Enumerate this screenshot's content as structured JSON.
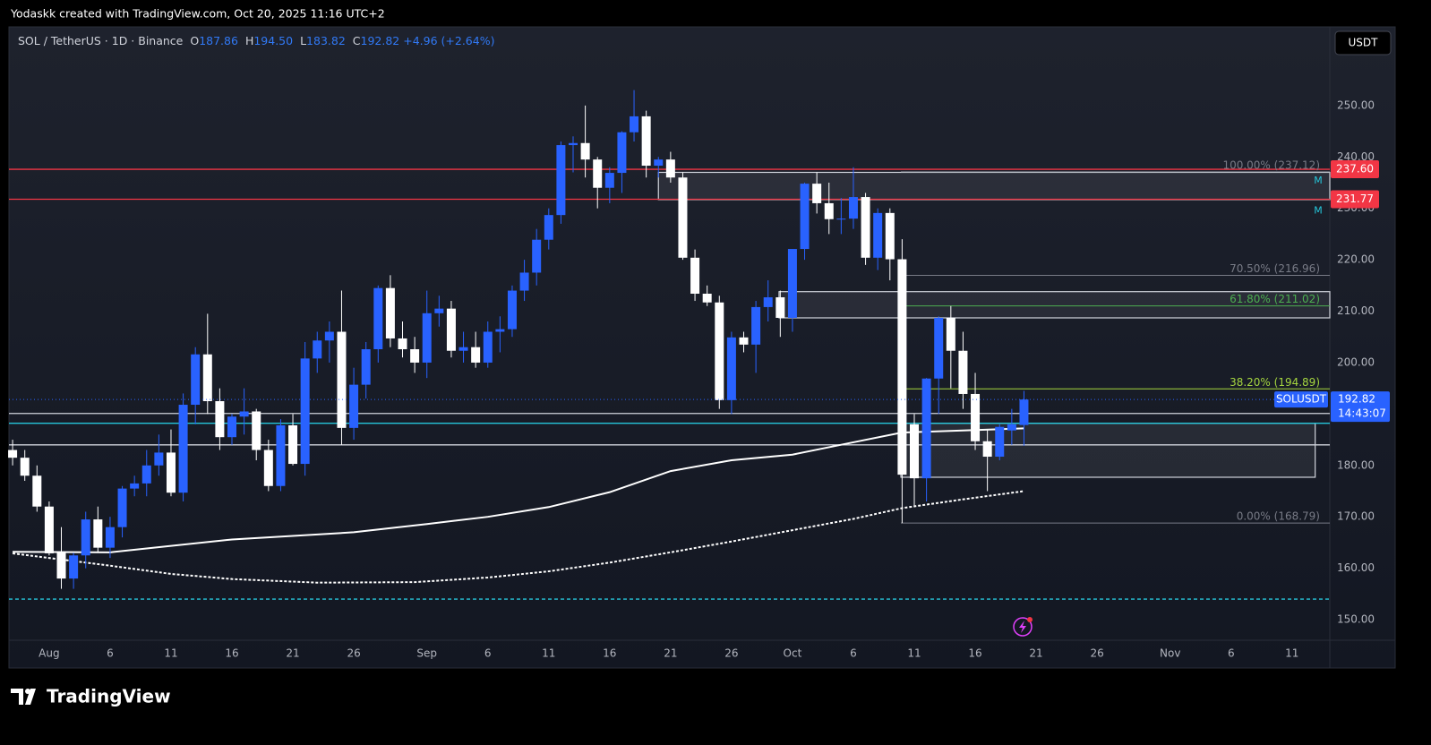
{
  "header": {
    "attribution": "Yodaskk created with TradingView.com, Oct 20, 2025 11:16 UTC+2"
  },
  "legend": {
    "symbol": "SOL / TetherUS · 1D · Binance",
    "open_key": "O",
    "open": "187.86",
    "high_key": "H",
    "high": "194.50",
    "low_key": "L",
    "low": "183.82",
    "close_key": "C",
    "close": "192.82",
    "change": "+4.96 (+2.64%)"
  },
  "currency_button": "USDT",
  "brand": "TradingView",
  "chart_data": {
    "type": "candlestick",
    "up_color": "#2962ff",
    "down_color": "#ffffff",
    "x": [
      -3,
      -2,
      -1,
      0,
      1,
      2,
      3,
      4,
      5,
      6,
      7,
      8,
      9,
      10,
      11,
      12,
      13,
      14,
      15,
      16,
      17,
      18,
      19,
      20,
      21,
      22,
      23,
      24,
      25,
      26,
      27,
      28,
      29,
      30,
      31,
      32,
      33,
      34,
      35,
      36,
      37,
      38,
      39,
      40,
      41,
      42,
      43,
      44,
      45,
      46,
      47,
      48,
      49,
      50,
      51,
      52,
      53,
      54,
      55,
      56,
      57,
      58,
      59,
      60,
      61,
      62,
      63,
      64,
      65,
      66,
      67,
      68,
      69,
      70,
      71,
      72,
      73,
      74,
      75,
      76,
      77,
      78,
      79,
      80
    ],
    "open": [
      183,
      181.5,
      178,
      172,
      163,
      158,
      162.5,
      169.5,
      164,
      168,
      175.5,
      176.5,
      180,
      182.5,
      174.7,
      191.8,
      201.6,
      192.5,
      185.5,
      189.5,
      190.5,
      183,
      176,
      187.8,
      180.3,
      200.8,
      204.3,
      206,
      187.3,
      195.7,
      202.6,
      214.5,
      204.7,
      202.6,
      200,
      209.6,
      210.5,
      202.3,
      203,
      200,
      206,
      206.5,
      214,
      217.5,
      223.9,
      228.7,
      242.3,
      242.7,
      239.5,
      234,
      236.9,
      244.8,
      247.9,
      238.3,
      239.5,
      236,
      220.4,
      213.4,
      211.7,
      192.7,
      204.9,
      203.5,
      210.8,
      212.7,
      208.7,
      222.1,
      234.8,
      231,
      227.9,
      228,
      232.2,
      220.4,
      229.1,
      220.1,
      188,
      177.5,
      196.9,
      208.7,
      202.3,
      193.9,
      184.7,
      181.7,
      186.8,
      187.86
    ],
    "high": [
      185,
      183,
      180,
      173,
      168,
      163,
      171,
      172,
      170,
      176,
      178,
      183,
      186,
      187,
      194,
      203,
      209.5,
      195,
      190,
      195,
      191,
      185,
      189,
      190,
      204,
      206,
      208,
      214,
      199,
      204,
      215,
      217,
      208,
      205,
      214,
      213,
      212,
      206,
      206,
      208,
      209,
      215,
      220,
      226,
      230,
      243,
      244,
      250,
      240,
      238,
      245,
      253,
      249,
      240,
      241,
      237,
      222,
      215,
      213,
      206,
      206,
      212,
      216,
      214,
      222,
      235,
      237,
      235,
      232,
      238,
      233,
      230,
      230,
      224,
      190,
      197,
      209,
      211,
      206,
      198,
      187,
      188,
      191,
      194.5
    ],
    "low": [
      180,
      177,
      171,
      162.5,
      156,
      156,
      160,
      163,
      162,
      166,
      174,
      174,
      178,
      174,
      173,
      188,
      190,
      183,
      184,
      186,
      181,
      175,
      175,
      180,
      178,
      198,
      200,
      184,
      185,
      193,
      200,
      203,
      201,
      198,
      197,
      207,
      201,
      200,
      199,
      199,
      202,
      205,
      212,
      215,
      222,
      227,
      237,
      236,
      230,
      231,
      233,
      243,
      236,
      236,
      235,
      220,
      212,
      211,
      191,
      190,
      202,
      198,
      208,
      205,
      206,
      220,
      229,
      225,
      225,
      226,
      219,
      218,
      216,
      168.8,
      172,
      173,
      190,
      195,
      191,
      183,
      175,
      181,
      184,
      183.82
    ],
    "close": [
      181.5,
      178,
      172,
      162.9,
      158,
      162.5,
      169.5,
      164,
      168,
      175.5,
      176.5,
      180,
      182.5,
      174.7,
      191.8,
      201.6,
      192.5,
      185.5,
      189.5,
      190.5,
      183,
      176,
      187.8,
      180.3,
      200.8,
      204.3,
      206,
      187.3,
      195.7,
      202.6,
      214.5,
      204.7,
      202.6,
      200,
      209.6,
      210.5,
      202.3,
      203,
      200,
      206,
      206.5,
      214,
      217.5,
      223.9,
      228.7,
      242.3,
      242.7,
      239.5,
      234,
      236.9,
      244.8,
      247.9,
      238.3,
      239.5,
      236,
      220.4,
      213.4,
      211.7,
      192.7,
      204.9,
      203.5,
      210.8,
      212.7,
      208.7,
      222.1,
      234.8,
      231,
      227.9,
      228,
      232.2,
      220.4,
      229.1,
      220.1,
      178.2,
      177.5,
      196.9,
      208.7,
      202.3,
      193.9,
      184.7,
      181.7,
      187.5,
      188,
      192.82
    ],
    "xlim": [
      -3.3,
      105.1
    ],
    "xticks": [
      {
        "value": 0,
        "label": "Aug"
      },
      {
        "value": 5,
        "label": "6"
      },
      {
        "value": 10,
        "label": "11"
      },
      {
        "value": 15,
        "label": "16"
      },
      {
        "value": 20,
        "label": "21"
      },
      {
        "value": 25,
        "label": "26"
      },
      {
        "value": 31,
        "label": "Sep"
      },
      {
        "value": 36,
        "label": "6"
      },
      {
        "value": 41,
        "label": "11"
      },
      {
        "value": 46,
        "label": "16"
      },
      {
        "value": 51,
        "label": "21"
      },
      {
        "value": 56,
        "label": "26"
      },
      {
        "value": 61,
        "label": "Oct"
      },
      {
        "value": 66,
        "label": "6"
      },
      {
        "value": 71,
        "label": "11"
      },
      {
        "value": 76,
        "label": "16"
      },
      {
        "value": 81,
        "label": "21"
      },
      {
        "value": 86,
        "label": "26"
      },
      {
        "value": 92,
        "label": "Nov"
      },
      {
        "value": 97,
        "label": "6"
      },
      {
        "value": 102,
        "label": "11"
      }
    ],
    "ylim": [
      146,
      265.3
    ],
    "yticks": [
      {
        "value": 150,
        "label": "150.00"
      },
      {
        "value": 160,
        "label": "160.00"
      },
      {
        "value": 170,
        "label": "170.00"
      },
      {
        "value": 180,
        "label": "180.00"
      },
      {
        "value": 190,
        "label": "190.00"
      },
      {
        "value": 200,
        "label": "200.00"
      },
      {
        "value": 210,
        "label": "210.00"
      },
      {
        "value": 220,
        "label": "220.00"
      },
      {
        "value": 230,
        "label": "230.00"
      },
      {
        "value": 240,
        "label": "240.00"
      },
      {
        "value": 250,
        "label": "250.00"
      }
    ],
    "moving_averages": [
      {
        "color": "#ffffff",
        "dash": false,
        "x": [
          -3,
          5,
          15,
          25,
          31,
          36,
          41,
          46,
          51,
          56,
          61,
          66,
          70,
          75,
          80
        ],
        "values": [
          163.2,
          163.1,
          165.6,
          167,
          168.6,
          170,
          171.9,
          174.8,
          178.9,
          181,
          182.1,
          184.5,
          186.4,
          186.8,
          187.2
        ]
      },
      {
        "color": "#ffffff",
        "dash": true,
        "x": [
          -3,
          5,
          10,
          15,
          22,
          30,
          36,
          41,
          46,
          51,
          56,
          61,
          66,
          70,
          75,
          80
        ],
        "values": [
          162.9,
          160.5,
          158.9,
          157.9,
          157.2,
          157.3,
          158.2,
          159.4,
          161.1,
          163.1,
          165.2,
          167.4,
          169.6,
          171.7,
          173.4,
          175
        ]
      }
    ],
    "levels": [
      {
        "value": 237.6,
        "label": "237.60",
        "color": "#f23645",
        "marker": "M"
      },
      {
        "value": 231.77,
        "label": "231.77",
        "color": "#f23645",
        "marker": "M"
      },
      {
        "value": 190.1,
        "color": "#d1d4dc"
      },
      {
        "value": 188.2,
        "color": "#26c6da"
      },
      {
        "value": 184,
        "color": "#d1d4dc"
      },
      {
        "value": 154,
        "color": "#26c6da",
        "dash": true
      }
    ],
    "zones": [
      {
        "x": [
          50,
          105.1
        ],
        "y": [
          237,
          231.7
        ]
      },
      {
        "x": [
          59.9,
          105.1
        ],
        "y": [
          213.8,
          208.7
        ]
      },
      {
        "x": [
          69.9,
          103.9
        ],
        "y": [
          188.2,
          177.7
        ]
      }
    ],
    "fib_start": 69.9,
    "fib": [
      {
        "value": 237.12,
        "label": "100.00% (237.12)",
        "color": "#787b86"
      },
      {
        "value": 216.96,
        "label": "70.50% (216.96)",
        "color": "#787b86"
      },
      {
        "value": 211.02,
        "label": "61.80% (211.02)",
        "color": "#4caf50"
      },
      {
        "value": 194.89,
        "label": "38.20% (194.89)",
        "color": "#a5d63f"
      },
      {
        "value": 168.79,
        "label": "0.00% (168.79)",
        "color": "#787b86"
      }
    ],
    "last_price": {
      "value": 192.82,
      "label": "192.82",
      "symbol": "SOLUSDT",
      "countdown": "14:43:07"
    }
  }
}
